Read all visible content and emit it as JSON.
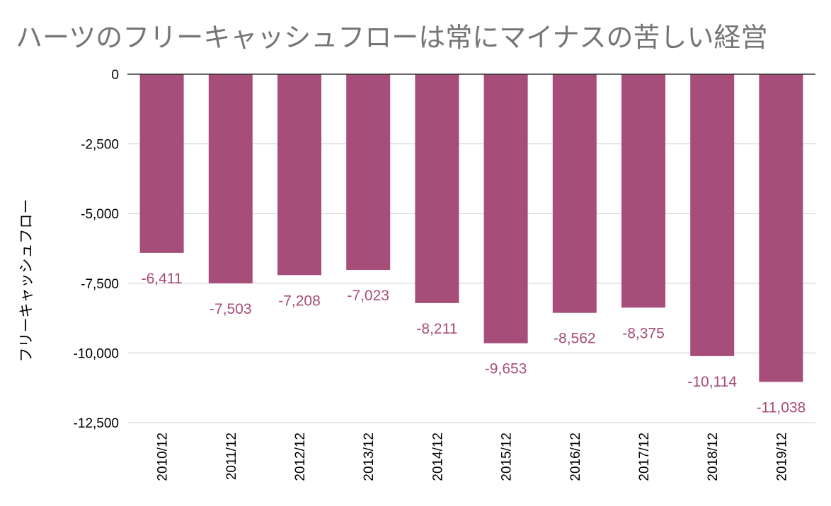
{
  "chart_data": {
    "type": "bar",
    "title": "ハーツのフリーキャッシュフローは常にマイナスの苦しい経営",
    "xlabel": "",
    "ylabel": "フリーキャッシュフロー",
    "categories": [
      "2010/12",
      "2011/12",
      "2012/12",
      "2013/12",
      "2014/12",
      "2015/12",
      "2016/12",
      "2017/12",
      "2018/12",
      "2019/12"
    ],
    "series": [
      {
        "values": [
          -6411,
          -7503,
          -7208,
          -7023,
          -8211,
          -9653,
          -8562,
          -8375,
          -10114,
          -11038
        ]
      }
    ],
    "value_labels": [
      "-6,411",
      "-7,503",
      "-7,208",
      "-7,023",
      "-8,211",
      "-9,653",
      "-8,562",
      "-8,375",
      "-10,114",
      "-11,038"
    ],
    "yticks": [
      0,
      -2500,
      -5000,
      -7500,
      -10000,
      -12500
    ],
    "ytick_labels": [
      "0",
      "-2,500",
      "-5,000",
      "-7,500",
      "-10,000",
      "-12,500"
    ],
    "ylim": [
      -12500,
      0
    ],
    "grid": true,
    "legend": "none",
    "colors": {
      "bar": "#a64d79",
      "label": "#a64d79",
      "grid": "#cccccc",
      "zero_line": "#333333"
    }
  }
}
